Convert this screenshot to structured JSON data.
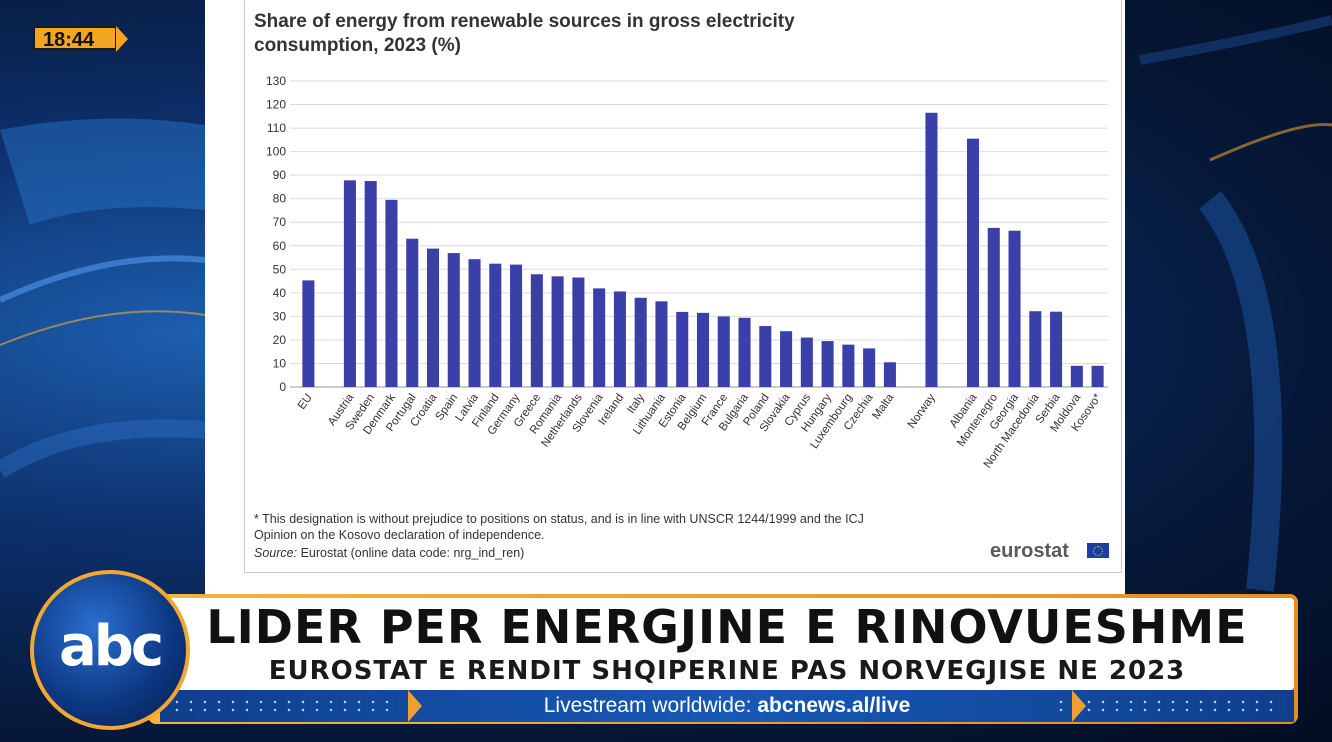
{
  "clock": {
    "time": "18:44"
  },
  "chart_data": {
    "type": "bar",
    "title": "Share of energy from renewable sources in gross electricity consumption, 2023 (%)",
    "title_line1": "Share of energy from renewable sources in gross electricity",
    "title_line2": "consumption, 2023 (%)",
    "xlabel": "",
    "ylabel": "",
    "ylim": [
      0,
      130
    ],
    "yticks": [
      0,
      10,
      20,
      30,
      40,
      50,
      60,
      70,
      80,
      90,
      100,
      110,
      120,
      130
    ],
    "grid": true,
    "bar_color": "#3a40a8",
    "categories": [
      "EU",
      "",
      "Austria",
      "Sweden",
      "Denmark",
      "Portugal",
      "Croatia",
      "Spain",
      "Latvia",
      "Finland",
      "Germany",
      "Greece",
      "Romania",
      "Netherlands",
      "Slovenia",
      "Ireland",
      "Italy",
      "Lithuania",
      "Estonia",
      "Belgium",
      "France",
      "Bulgaria",
      "Poland",
      "Slovakia",
      "Cyprus",
      "Hungary",
      "Luxembourg",
      "Czechia",
      "Malta",
      "",
      "Norway",
      "",
      "Albania",
      "Montenegro",
      "Georgia",
      "North Macedonia",
      "Serbia",
      "Moldova",
      "Kosovo*"
    ],
    "values": [
      45.3,
      null,
      87.8,
      87.5,
      79.5,
      63.0,
      58.8,
      56.9,
      54.3,
      52.4,
      52.0,
      47.9,
      47.0,
      46.5,
      41.9,
      40.6,
      37.9,
      36.4,
      31.9,
      31.5,
      30.0,
      29.4,
      25.9,
      23.7,
      21.0,
      19.5,
      18.0,
      16.4,
      10.5,
      null,
      116.5,
      null,
      105.5,
      67.6,
      66.4,
      32.2,
      32.0,
      9.0,
      9.0
    ]
  },
  "footnote": {
    "line1": "* This designation is without prejudice to positions on status, and is in line with UNSCR 1244/1999 and the ICJ",
    "line2": "Opinion on the Kosovo declaration of independence.",
    "source_label": "Source:",
    "source_text": " Eurostat (online data code: nrg_ind_ren)",
    "logo": "eurostat"
  },
  "lower_third": {
    "logo": "abc",
    "headline": "LIDER PER ENERGJINE E RINOVUESHME",
    "subheadline": "EUROSTAT E RENDIT SHQIPERINE PAS NORVEGJISE NE 2023",
    "ticker_prefix": "Livestream worldwide: ",
    "ticker_url": "abcnews.al/live"
  }
}
